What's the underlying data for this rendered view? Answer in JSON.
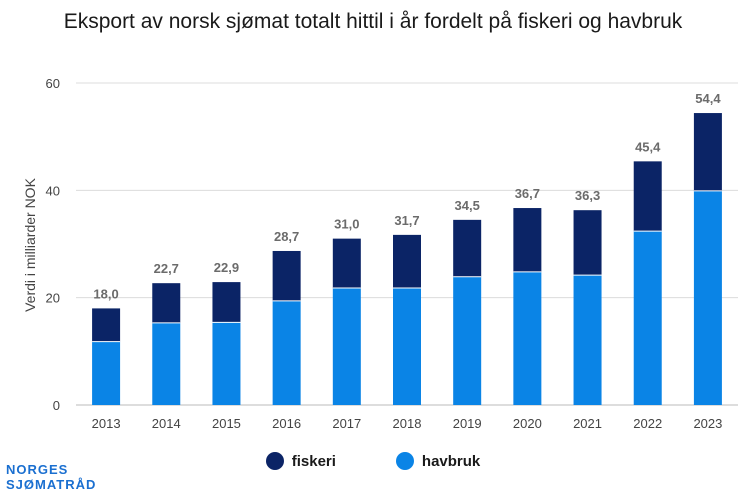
{
  "colors": {
    "fiskeri": "#0b2466",
    "havbruk": "#0a84e6",
    "grid": "#dcdcdc",
    "label": "#6b6b6b",
    "axis": "#444444"
  },
  "logo": {
    "line1": "NORGES",
    "line2": "SJØMATRÅD"
  },
  "chart_data": {
    "type": "bar",
    "stacked": true,
    "title": "Eksport av norsk sjømat totalt hittil i år fordelt på fiskeri og havbruk",
    "xlabel": "",
    "ylabel": "Verdi i milliarder NOK",
    "ylim": [
      0,
      60
    ],
    "yticks": [
      0,
      20,
      40,
      60
    ],
    "categories": [
      "2013",
      "2014",
      "2015",
      "2016",
      "2017",
      "2018",
      "2019",
      "2020",
      "2021",
      "2022",
      "2023"
    ],
    "series": [
      {
        "name": "havbruk",
        "values": [
          11.8,
          15.3,
          15.4,
          19.4,
          21.8,
          21.8,
          23.9,
          24.8,
          24.2,
          32.4,
          39.9
        ]
      },
      {
        "name": "fiskeri",
        "values": [
          6.2,
          7.4,
          7.5,
          9.3,
          9.2,
          9.9,
          10.6,
          11.9,
          12.1,
          13.0,
          14.5
        ]
      }
    ],
    "totals_labels": [
      "18,0",
      "22,7",
      "22,9",
      "28,7",
      "31,0",
      "31,7",
      "34,5",
      "36,7",
      "36,3",
      "45,4",
      "54,4"
    ],
    "grid": true,
    "legend_position": "bottom"
  }
}
